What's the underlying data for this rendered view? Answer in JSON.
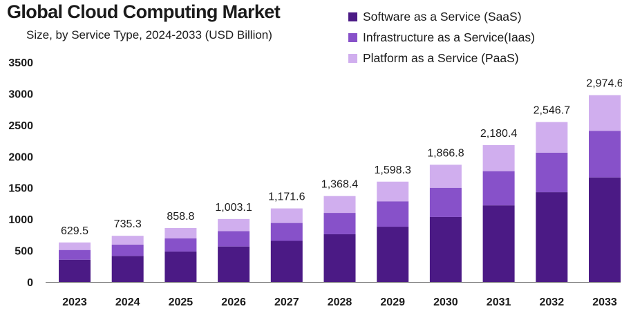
{
  "title": "Global Cloud Computing Market",
  "subtitle": "Size, by Service Type, 2024-2033 (USD Billion)",
  "colors": {
    "saas": "#4b1a85",
    "iaas": "#8751c9",
    "paas": "#d0aeee",
    "text": "#1a1a1a"
  },
  "legend": [
    {
      "label": "Software as a Service (SaaS)",
      "color": "#4b1a85"
    },
    {
      "label": "Infrastructure as a Service(Iaas)",
      "color": "#8751c9"
    },
    {
      "label": "Platform as a Service (PaaS)",
      "color": "#d0aeee"
    }
  ],
  "chart_data": {
    "type": "bar",
    "stacked": true,
    "title": "Global Cloud Computing Market",
    "subtitle": "Size, by Service Type, 2024-2033 (USD Billion)",
    "xlabel": "",
    "ylabel": "",
    "categories": [
      "2023",
      "2024",
      "2025",
      "2026",
      "2027",
      "2028",
      "2029",
      "2030",
      "2031",
      "2032",
      "2033"
    ],
    "series": [
      {
        "name": "Software as a Service (SaaS)",
        "values": [
          355,
          415,
          485,
          565,
          655,
          760,
          880,
          1035,
          1220,
          1430,
          1665
        ]
      },
      {
        "name": "Infrastructure as a Service(Iaas)",
        "values": [
          155,
          180,
          210,
          245,
          285,
          340,
          405,
          465,
          545,
          630,
          740
        ]
      },
      {
        "name": "Platform as a Service (PaaS)",
        "values": [
          119.5,
          140.3,
          163.8,
          193.1,
          231.6,
          268.4,
          313.3,
          366.8,
          415.4,
          486.7,
          569.6
        ]
      }
    ],
    "totals": [
      629.5,
      735.3,
      858.8,
      1003.1,
      1171.6,
      1368.4,
      1598.3,
      1866.8,
      2180.4,
      2546.7,
      2974.6
    ],
    "total_labels": [
      "629.5",
      "735.3",
      "858.8",
      "1,003.1",
      "1,171.6",
      "1,368.4",
      "1,598.3",
      "1,866.8",
      "2,180.4",
      "2,546.7",
      "2,974.6"
    ],
    "yticks": [
      0,
      500,
      1000,
      1500,
      2000,
      2500,
      3000,
      3500
    ],
    "ylim": [
      0,
      3500
    ],
    "grid": false,
    "legend_position": "top-right"
  }
}
